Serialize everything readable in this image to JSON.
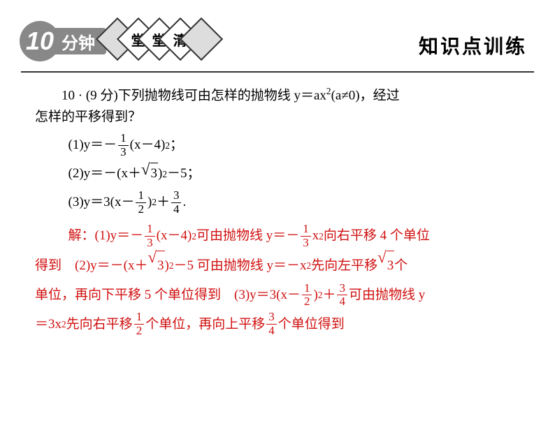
{
  "header": {
    "badge_number": "10",
    "badge_unit": "分钟",
    "diamond_text": "堂堂清",
    "title": "知识点训练",
    "colors": {
      "badge_bg": "#888888",
      "badge_fg": "#ffffff",
      "line": "#333333",
      "answer": "#d01010",
      "text": "#000000"
    }
  },
  "question": {
    "number": "10",
    "score": "9 分",
    "intro_a": "10 · (9 分)下列抛物线可由怎样的抛物线 y＝ax",
    "intro_b": "(a≠0)，经过",
    "intro_c": "怎样的平移得到？",
    "sup2": "2",
    "sub1": {
      "label": "(1)y＝－",
      "frac_num": "1",
      "frac_den": "3",
      "tail_a": "(x－4)",
      "tail_b": "；"
    },
    "sub2": {
      "label": "(2)y＝－(x＋",
      "sqrt_arg": "3",
      "tail_a": ")",
      "tail_b": "－5；"
    },
    "sub3": {
      "label": "(3)y＝3(x－",
      "frac1_num": "1",
      "frac1_den": "2",
      "mid": ")",
      "plus": "＋",
      "frac2_num": "3",
      "frac2_den": "4",
      "tail": "."
    }
  },
  "answer": {
    "prefix": "解：",
    "line1_a": "(1)y＝－",
    "line1_b": "(x－4)",
    "line1_c": " 可由抛物线 y＝－",
    "line1_d": "x",
    "line1_e": " 向右平移 4 个单位",
    "line2_a": "得到　(2)y＝－(x＋",
    "line2_b": ")",
    "line2_c": "－5 可由抛物线 y＝－x",
    "line2_d": " 先向左平移",
    "line2_e": "个",
    "line3_a": "单位，再向下平移 5 个单位得到　(3)y＝3(x－",
    "line3_b": ")",
    "line3_c": "＋",
    "line3_d": "可由抛物线 y",
    "line4_a": "＝3x",
    "line4_b": " 先向右平移",
    "line4_c": "个单位，再向上平移",
    "line4_d": "个单位得到",
    "frac13_num": "1",
    "frac13_den": "3",
    "frac12_num": "1",
    "frac12_den": "2",
    "frac34_num": "3",
    "frac34_den": "4",
    "sqrt3": "3",
    "sup2": "2"
  }
}
